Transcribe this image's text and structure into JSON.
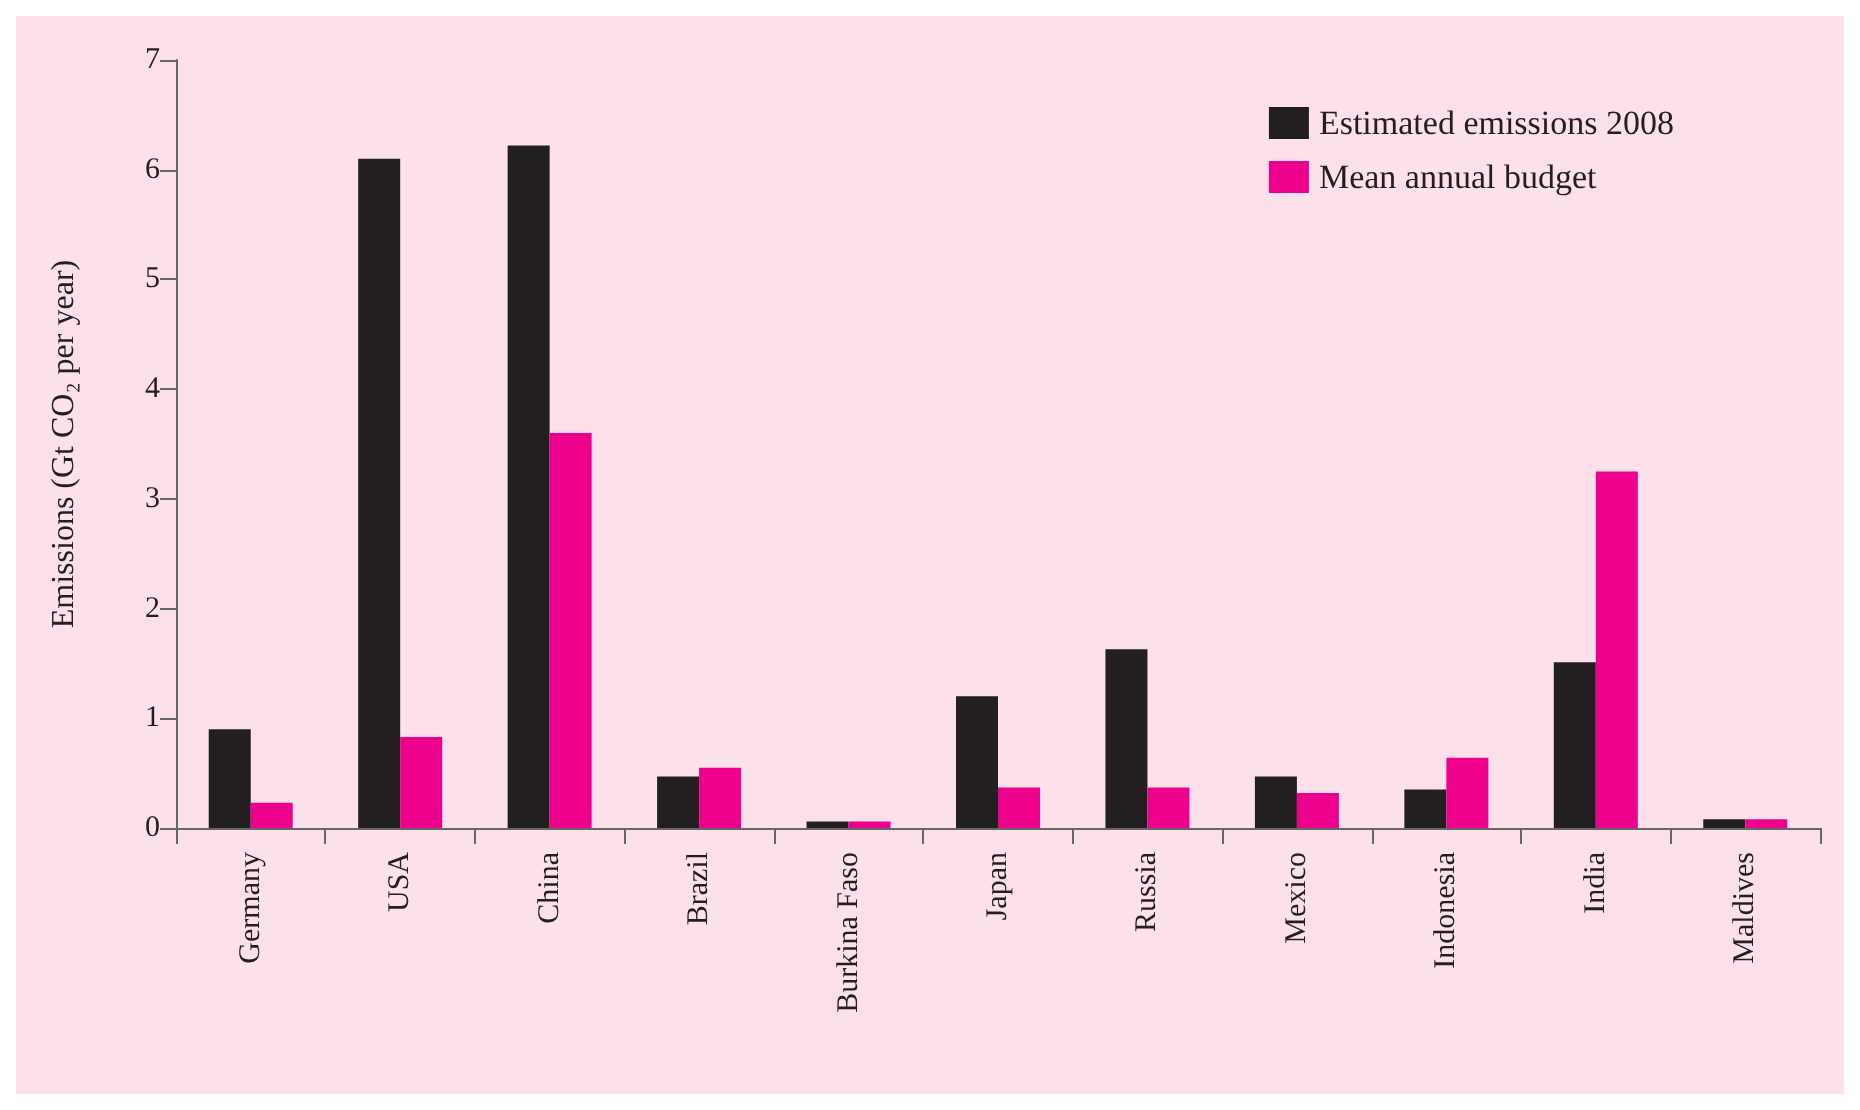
{
  "chart_data": {
    "type": "bar",
    "ylabel": "Emissions (Gt CO₂ per year)",
    "categories": [
      "Germany",
      "USA",
      "China",
      "Brazil",
      "Burkina Faso",
      "Japan",
      "Russia",
      "Mexico",
      "Indonesia",
      "India",
      "Maldives"
    ],
    "series": [
      {
        "name": "Estimated emissions 2008",
        "color": "#231f20",
        "values": [
          0.9,
          6.1,
          6.22,
          0.47,
          0.06,
          1.2,
          1.63,
          0.47,
          0.35,
          1.51,
          0.08
        ]
      },
      {
        "name": "Mean annual budget",
        "color": "#ec008c",
        "values": [
          0.23,
          0.83,
          3.6,
          0.55,
          0.06,
          0.37,
          0.37,
          0.32,
          0.64,
          3.25,
          0.08
        ]
      }
    ],
    "ylim": [
      0,
      7
    ],
    "yticks": [
      0,
      1,
      2,
      3,
      4,
      5,
      6,
      7
    ],
    "grid": false,
    "legend": "top right"
  }
}
